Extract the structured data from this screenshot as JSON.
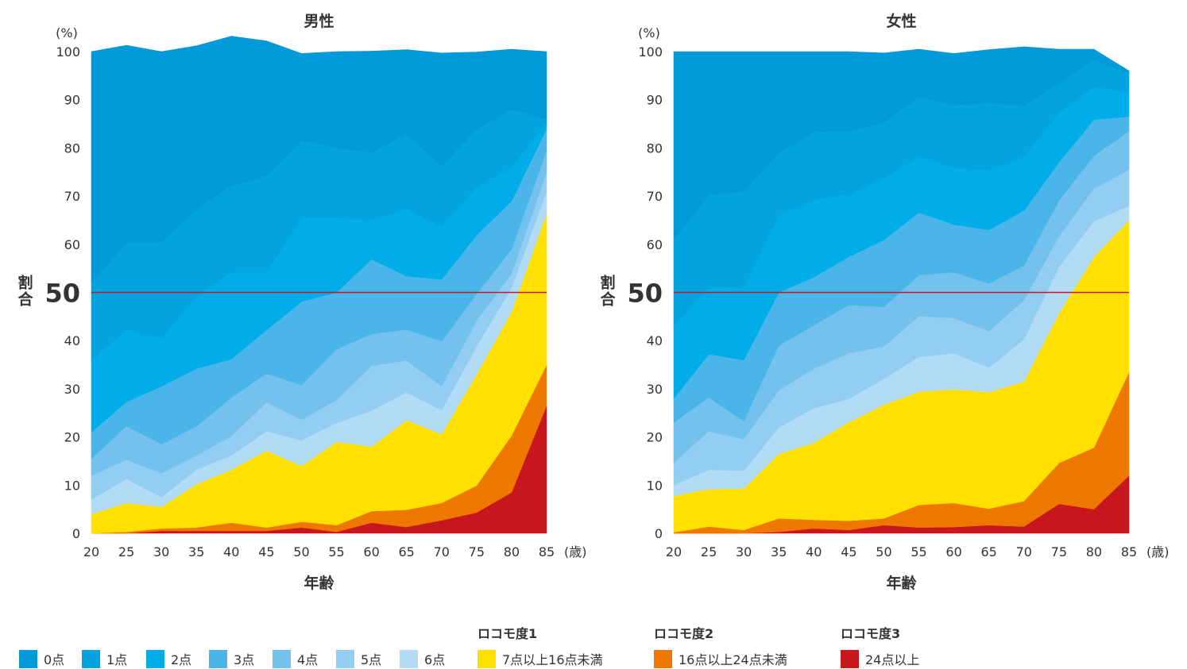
{
  "chart_data": [
    {
      "type": "area",
      "title": "男性",
      "ylabel": "割合",
      "xlabel": "年齢",
      "y_unit": "(%)",
      "x_unit": "(歳)",
      "ylim": [
        0,
        100
      ],
      "yticks": [
        "0",
        "10",
        "20",
        "30",
        "40",
        "50",
        "60",
        "70",
        "80",
        "90",
        "100"
      ],
      "x": [
        "20",
        "25",
        "30",
        "35",
        "40",
        "45",
        "50",
        "55",
        "60",
        "65",
        "70",
        "75",
        "80",
        "85"
      ],
      "reference_line": 50,
      "series": [
        {
          "name": "24点以上",
          "values": [
            0,
            0,
            0.5,
            0.5,
            0.5,
            0.5,
            1.2,
            0.3,
            2.2,
            1.3,
            2.7,
            4.3,
            8.5,
            26.5
          ]
        },
        {
          "name": "16点以上24点未満",
          "values": [
            0,
            0.3,
            0.5,
            0.7,
            1.7,
            0.7,
            1.2,
            1.4,
            2.4,
            3.6,
            3.6,
            5.6,
            11.8,
            8.5
          ]
        },
        {
          "name": "7点以上16点未満",
          "values": [
            4,
            6,
            4.5,
            9,
            11,
            16,
            11.6,
            17.3,
            13.4,
            18.6,
            14.3,
            23.1,
            25.7,
            31.5
          ]
        },
        {
          "name": "6点",
          "values": [
            3,
            5,
            2,
            3,
            3,
            4,
            5.3,
            3.9,
            7.5,
            5.8,
            5,
            5.8,
            5,
            4.5
          ]
        },
        {
          "name": "5点",
          "values": [
            5,
            4,
            5,
            3,
            4,
            6,
            4.3,
            4.8,
            9.3,
            6.6,
            5,
            5.3,
            3,
            4
          ]
        },
        {
          "name": "4点",
          "values": [
            3.5,
            7,
            6,
            6,
            8,
            6,
            7.2,
            10.5,
            6.6,
            6.4,
            9.3,
            5.6,
            5,
            4.5
          ]
        },
        {
          "name": "3点",
          "values": [
            5.5,
            5,
            12,
            12,
            8,
            9,
            17.3,
            11.8,
            15.5,
            11.1,
            12.8,
            12.2,
            10,
            4.5
          ]
        },
        {
          "name": "2点",
          "values": [
            15,
            15,
            10,
            15,
            18,
            12,
            17.5,
            15.5,
            8.2,
            14,
            11,
            10,
            7,
            1.5
          ]
        },
        {
          "name": "1点",
          "values": [
            16,
            18,
            20,
            18,
            18,
            20,
            16,
            14.5,
            14,
            15.5,
            12.5,
            12,
            12,
            0.5
          ]
        },
        {
          "name": "0点",
          "values": [
            48,
            41,
            39.5,
            34,
            31,
            28,
            18,
            20,
            21,
            17.5,
            23.5,
            16,
            12.5,
            14
          ]
        }
      ]
    },
    {
      "type": "area",
      "title": "女性",
      "ylabel": "割合",
      "xlabel": "年齢",
      "y_unit": "(%)",
      "x_unit": "(歳)",
      "ylim": [
        0,
        100
      ],
      "yticks": [
        "0",
        "10",
        "20",
        "30",
        "40",
        "50",
        "60",
        "70",
        "80",
        "90",
        "100"
      ],
      "x": [
        "20",
        "25",
        "30",
        "35",
        "40",
        "45",
        "50",
        "55",
        "60",
        "65",
        "70",
        "75",
        "80",
        "85"
      ],
      "reference_line": 50,
      "series": [
        {
          "name": "24点以上",
          "values": [
            0,
            0,
            0,
            0.3,
            1,
            0.7,
            1.7,
            1.2,
            1.3,
            1.7,
            1.4,
            6.1,
            5,
            12
          ]
        },
        {
          "name": "16点以上24点未満",
          "values": [
            0.2,
            1.4,
            0.7,
            2.8,
            1.8,
            1.9,
            1.4,
            4.7,
            5,
            3.4,
            5.3,
            8.5,
            12.8,
            21.5
          ]
        },
        {
          "name": "7点以上16点未満",
          "values": [
            7.6,
            7.8,
            8.6,
            13.4,
            16,
            20.5,
            23.6,
            23.5,
            23.6,
            24.2,
            24.8,
            31.1,
            39.6,
            31.5
          ]
        },
        {
          "name": "6点",
          "values": [
            2.2,
            4,
            3.7,
            5.5,
            7.2,
            4.8,
            5.4,
            7.2,
            7.5,
            5.1,
            8.8,
            9.6,
            7.4,
            3
          ]
        },
        {
          "name": "5点",
          "values": [
            4.7,
            8,
            6.6,
            7.7,
            8.2,
            9.5,
            6.7,
            8.5,
            7.3,
            7.6,
            8.1,
            6.4,
            6.8,
            7.5
          ]
        },
        {
          "name": "4点",
          "values": [
            8.3,
            7,
            3.7,
            9.3,
            9,
            10,
            8.2,
            8.5,
            9.5,
            9.9,
            7.2,
            7.4,
            6.8,
            8
          ]
        },
        {
          "name": "3点",
          "values": [
            5,
            9,
            12.7,
            11,
            10,
            10,
            13.9,
            13,
            9.9,
            11.1,
            11.4,
            7.9,
            7.5,
            3
          ]
        },
        {
          "name": "2点",
          "values": [
            15,
            14,
            15,
            16,
            16,
            13,
            12.9,
            11.6,
            11.8,
            12.4,
            11.3,
            10.3,
            6.9,
            5
          ]
        },
        {
          "name": "1点",
          "values": [
            18,
            19,
            20,
            13,
            14,
            13,
            11.5,
            12.5,
            13,
            14,
            10.5,
            6,
            5.5,
            4
          ]
        },
        {
          "name": "0点",
          "values": [
            39,
            29.8,
            29,
            21,
            16.8,
            16.6,
            14.4,
            9.8,
            10.7,
            11,
            12.2,
            7.2,
            2.2,
            0.5
          ]
        }
      ]
    }
  ],
  "legend": {
    "groups": [
      "ロコモ度1",
      "ロコモ度2",
      "ロコモ度3"
    ],
    "items": [
      {
        "label": "0点",
        "color": "#009ADB"
      },
      {
        "label": "1点",
        "color": "#03A3E0"
      },
      {
        "label": "2点",
        "color": "#00ADE8"
      },
      {
        "label": "3点",
        "color": "#4AB5E8"
      },
      {
        "label": "4点",
        "color": "#73C1EC"
      },
      {
        "label": "5点",
        "color": "#93CDF1"
      },
      {
        "label": "6点",
        "color": "#B2DBF6"
      },
      {
        "label": "7点以上16点未満",
        "color": "#FFE000"
      },
      {
        "label": "16点以上24点未満",
        "color": "#EE7700"
      },
      {
        "label": "24点以上",
        "color": "#C8161E"
      }
    ]
  },
  "reference_line_color": "#C8161E"
}
